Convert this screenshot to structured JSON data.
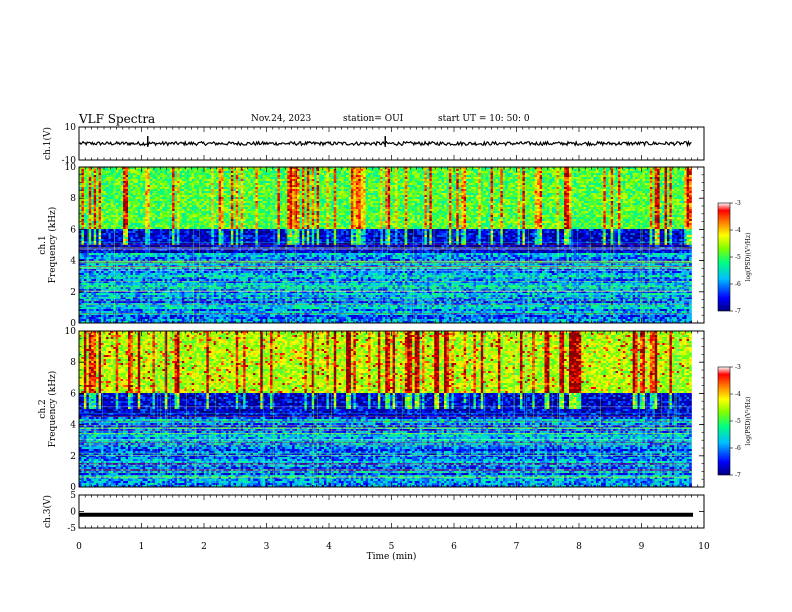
{
  "header": {
    "title": "VLF Spectra",
    "date": "Nov.24, 2023",
    "station": "station= OUI",
    "start": "start  UT =   10: 50: 0"
  },
  "chart_data": [
    {
      "type": "line",
      "name": "ch1-waveform",
      "ylabel": "ch.1(V)",
      "ylim": [
        -10,
        10
      ],
      "y_ticks": [
        "10",
        "-10"
      ],
      "x_range_min": [
        0,
        10
      ],
      "description_values": {
        "baseline_V": 0,
        "noise_amplitude_V": 1,
        "spikes_at_min": [
          1.1,
          4.9
        ]
      }
    },
    {
      "type": "heatmap",
      "name": "ch1-spectrogram",
      "ylabel": "ch.1\nFrequency (kHz)",
      "ylim": [
        0,
        10
      ],
      "y_ticks": [
        "0",
        "2",
        "4",
        "6",
        "8",
        "10"
      ],
      "colorbar": {
        "label": "log(PSD)(V²/Hz)",
        "range": [
          -7,
          -3
        ],
        "ticks": [
          "-3",
          "-4",
          "-5",
          "-6",
          "-7"
        ]
      }
    },
    {
      "type": "heatmap",
      "name": "ch2-spectrogram",
      "ylabel": "ch.2\nFrequency (kHz)",
      "ylim": [
        0,
        10
      ],
      "y_ticks": [
        "0",
        "2",
        "4",
        "6",
        "8",
        "10"
      ],
      "colorbar": {
        "label": "log(PSD)(V²/Hz)",
        "range": [
          -7,
          -3
        ],
        "ticks": [
          "-3",
          "-4",
          "-5",
          "-6",
          "-7"
        ]
      }
    },
    {
      "type": "line",
      "name": "ch3-waveform",
      "ylabel": "ch.3(V)",
      "ylim": [
        -5,
        5
      ],
      "y_ticks": [
        "5",
        "0",
        "-5"
      ],
      "description_values": {
        "baseline_V": -1
      }
    }
  ],
  "x_axis": {
    "label": "Time (min)",
    "range": [
      0,
      10
    ],
    "ticks": [
      "0",
      "1",
      "2",
      "3",
      "4",
      "5",
      "6",
      "7",
      "8",
      "9",
      "10"
    ],
    "data_end_min": 9.8
  },
  "colors": {
    "colormap": [
      "#00007f",
      "#0000ff",
      "#00bfff",
      "#00ff80",
      "#80ff00",
      "#ffff00",
      "#ff8000",
      "#ff0000",
      "#8b0000"
    ]
  }
}
